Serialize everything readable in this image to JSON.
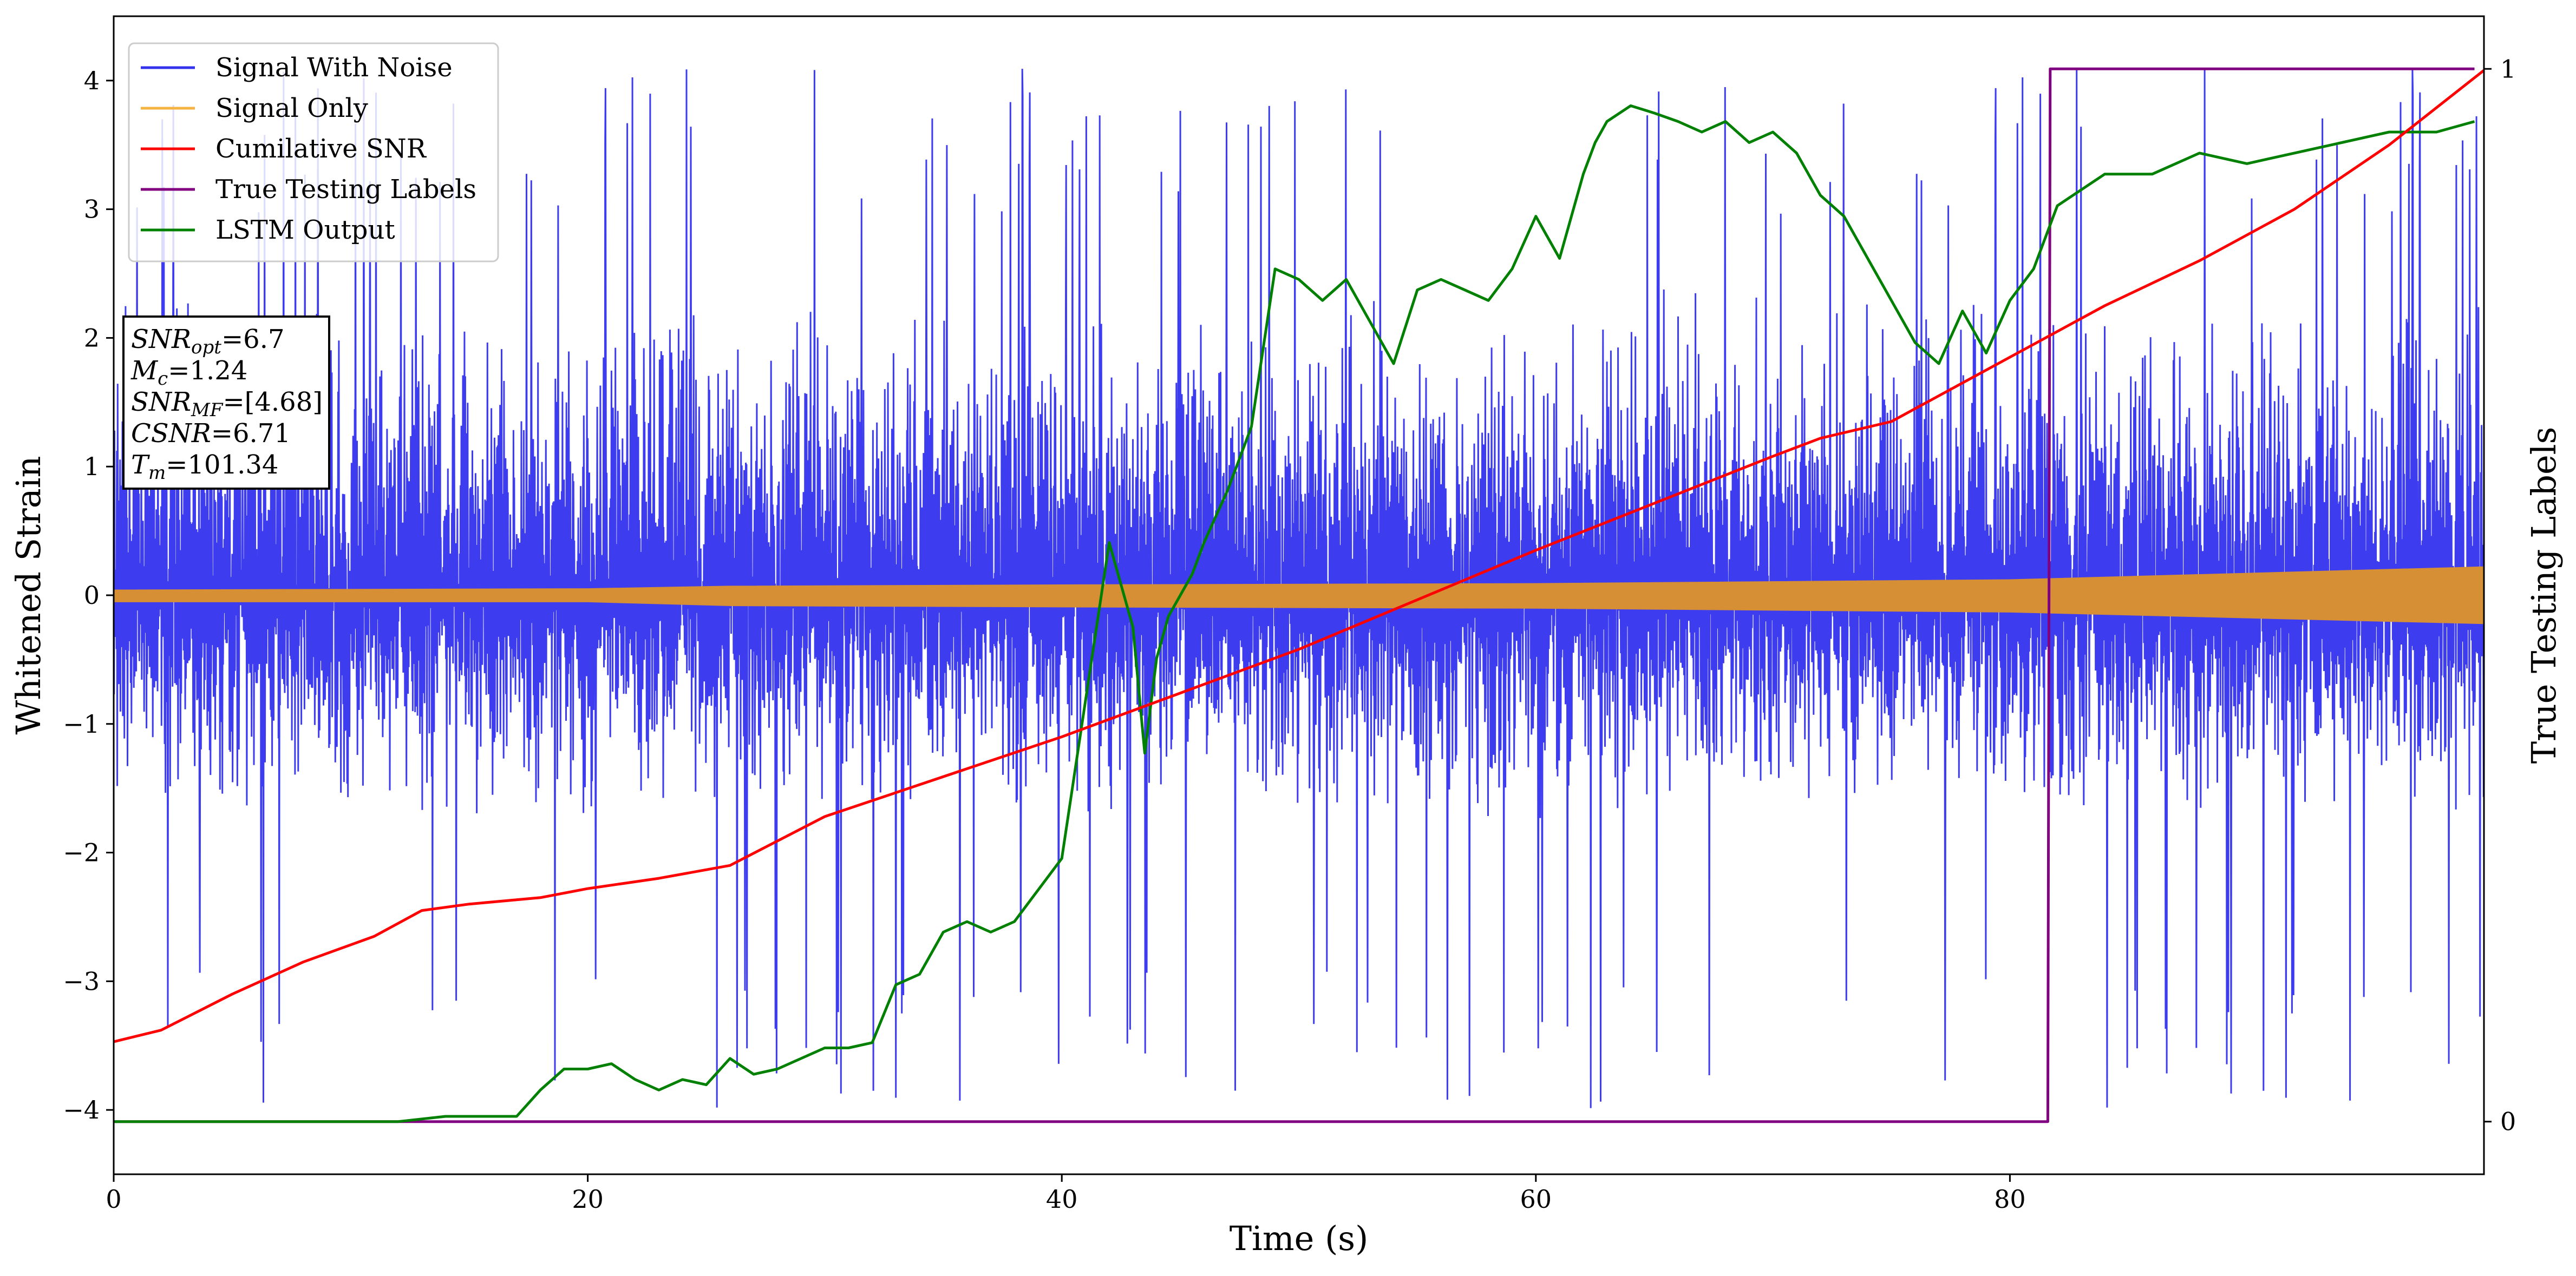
{
  "chart_data": {
    "type": "line",
    "xlabel": "Time (s)",
    "ylabel": "Whitened Strain",
    "y2label": "True Testing Labels",
    "xlim": [
      0,
      100
    ],
    "ylim": [
      -4.5,
      4.5
    ],
    "y2lim": [
      -0.05,
      1.05
    ],
    "xticks": [
      0,
      20,
      40,
      60,
      80
    ],
    "yticks": [
      -4,
      -3,
      -2,
      -1,
      0,
      1,
      2,
      3,
      4
    ],
    "y2ticks": [
      0,
      1
    ],
    "legend_position": "upper-left",
    "legend": [
      {
        "label": "Signal With Noise",
        "color": "#3333ee"
      },
      {
        "label": "Signal Only",
        "color": "#f5b342"
      },
      {
        "label": "Cumilative SNR",
        "color": "#ff0000"
      },
      {
        "label": "True Testing Labels",
        "color": "#800080"
      },
      {
        "label": "LSTM Output",
        "color": "#008000"
      }
    ],
    "annotation": [
      {
        "base": "SNR",
        "sub": "opt",
        "value": "6.7"
      },
      {
        "base": "M",
        "sub": "c",
        "value": "1.24"
      },
      {
        "base": "SNR",
        "sub": "MF",
        "value": "[4.68]"
      },
      {
        "base": "CSNR",
        "sub": "",
        "value": "6.71"
      },
      {
        "base": "T",
        "sub": "m",
        "value": "101.34"
      }
    ],
    "series": [
      {
        "name": "Signal With Noise",
        "axis": "left",
        "style": "noise",
        "amplitude_band": [
          -1.8,
          2.4
        ],
        "extreme_range": [
          -4.0,
          4.1
        ]
      },
      {
        "name": "Signal Only",
        "axis": "left",
        "style": "envelope",
        "x": [
          0,
          20,
          26,
          40,
          60,
          80,
          100
        ],
        "upper": [
          0.04,
          0.05,
          0.07,
          0.08,
          0.09,
          0.12,
          0.22
        ],
        "lower": [
          -0.05,
          -0.05,
          -0.08,
          -0.09,
          -0.1,
          -0.13,
          -0.22
        ]
      },
      {
        "name": "Cumilative SNR",
        "axis": "left",
        "x": [
          0,
          2,
          5,
          8,
          11,
          13,
          15,
          18,
          20,
          23,
          26,
          30,
          40,
          50,
          60,
          70,
          72,
          75,
          80,
          84,
          88,
          92,
          96,
          100
        ],
        "y": [
          -3.47,
          -3.38,
          -3.1,
          -2.85,
          -2.65,
          -2.45,
          -2.4,
          -2.35,
          -2.28,
          -2.2,
          -2.1,
          -1.72,
          -1.1,
          -0.42,
          0.35,
          1.08,
          1.22,
          1.35,
          1.85,
          2.25,
          2.6,
          3.0,
          3.5,
          4.08
        ]
      },
      {
        "name": "True Testing Labels",
        "axis": "right",
        "x": [
          0,
          81.6,
          81.7,
          99.6
        ],
        "y": [
          0,
          0,
          1,
          1
        ]
      },
      {
        "name": "LSTM Output",
        "axis": "right",
        "x": [
          0,
          12,
          14,
          16,
          17,
          18,
          19,
          20,
          21,
          22,
          23,
          24,
          25,
          26,
          27,
          28,
          29,
          30,
          31,
          32,
          33,
          34,
          35,
          36,
          37,
          38,
          39,
          40,
          41,
          42,
          42.5,
          43,
          43.5,
          44,
          44.5,
          45,
          45.5,
          46,
          47,
          48,
          49,
          50,
          51,
          52,
          53,
          54,
          55,
          56,
          57,
          58,
          59,
          60,
          61,
          62,
          62.5,
          63,
          64,
          65,
          66,
          67,
          68,
          69,
          70,
          71,
          72,
          73,
          74,
          75,
          76,
          77,
          78,
          79,
          80,
          81,
          82,
          84,
          86,
          88,
          90,
          92,
          94,
          96,
          98,
          99.6
        ],
        "y": [
          0,
          0,
          0.005,
          0.005,
          0.005,
          0.03,
          0.05,
          0.05,
          0.055,
          0.04,
          0.03,
          0.04,
          0.035,
          0.06,
          0.045,
          0.05,
          0.06,
          0.07,
          0.07,
          0.075,
          0.13,
          0.14,
          0.18,
          0.19,
          0.18,
          0.19,
          0.22,
          0.25,
          0.4,
          0.55,
          0.51,
          0.47,
          0.35,
          0.44,
          0.48,
          0.5,
          0.52,
          0.55,
          0.6,
          0.66,
          0.81,
          0.8,
          0.78,
          0.8,
          0.76,
          0.72,
          0.79,
          0.8,
          0.79,
          0.78,
          0.81,
          0.86,
          0.82,
          0.9,
          0.93,
          0.95,
          0.965,
          0.958,
          0.95,
          0.94,
          0.95,
          0.93,
          0.94,
          0.92,
          0.88,
          0.86,
          0.82,
          0.78,
          0.74,
          0.72,
          0.77,
          0.73,
          0.78,
          0.81,
          0.87,
          0.9,
          0.9,
          0.92,
          0.91,
          0.92,
          0.93,
          0.94,
          0.94,
          0.95
        ]
      }
    ]
  }
}
